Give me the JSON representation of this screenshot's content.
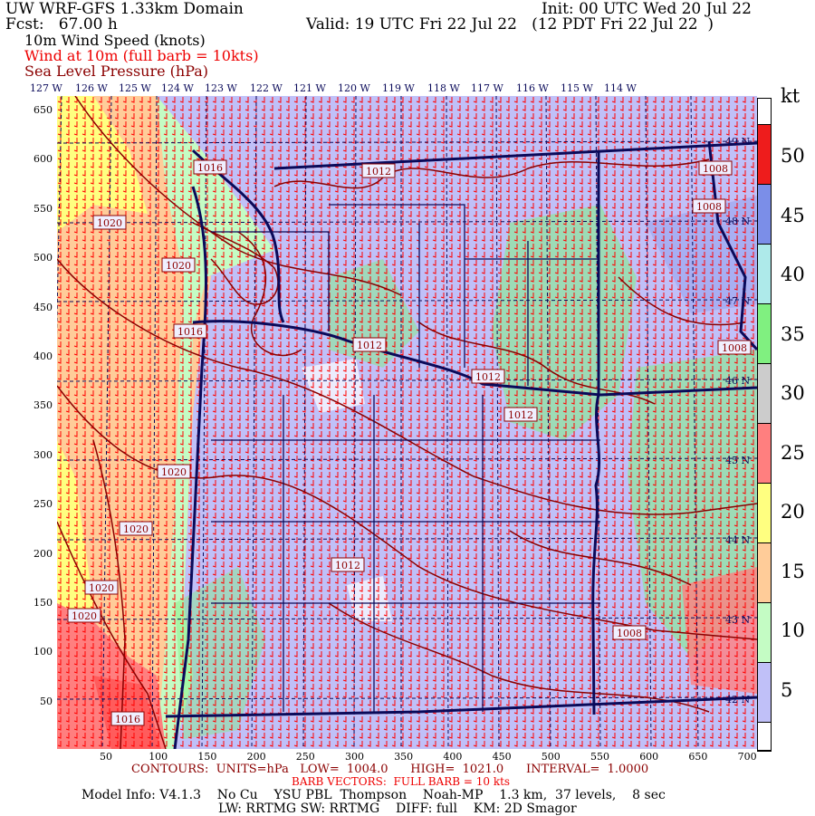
{
  "header": {
    "title": "UW WRF-GFS 1.33km Domain",
    "init": "Init: 00 UTC Wed 20 Jul 22",
    "fcst": "Fcst:   67.00 h",
    "valid": "Valid: 19 UTC Fri 22 Jul 22   (12 PDT Fri 22 Jul 22  )",
    "field1": "10m Wind Speed (knots)",
    "field2": "Wind at 10m (full barb = 10kts)",
    "field3": "Sea Level Pressure (hPa)"
  },
  "longitude_labels": [
    "127 W",
    "126 W",
    "125 W",
    "124 W",
    "123 W",
    "122 W",
    "121 W",
    "120 W",
    "119 W",
    "118 W",
    "117 W",
    "116 W",
    "115 W",
    "114 W"
  ],
  "latitude_labels": [
    "49 N",
    "48 N",
    "47 N",
    "46 N",
    "45 N",
    "44 N",
    "43 N",
    "42 N"
  ],
  "y_ticks": [
    "650",
    "600",
    "550",
    "500",
    "450",
    "400",
    "350",
    "300",
    "250",
    "200",
    "150",
    "100",
    "50"
  ],
  "x_ticks": [
    "50",
    "100",
    "150",
    "200",
    "250",
    "300",
    "350",
    "400",
    "450",
    "500",
    "550",
    "600",
    "650",
    "700"
  ],
  "colorbar": {
    "unit": "kt",
    "labels": [
      "50",
      "45",
      "40",
      "35",
      "30",
      "25",
      "20",
      "15",
      "10",
      "5"
    ],
    "colors": [
      "#ffffff",
      "#ee1c1c",
      "#7b8ee8",
      "#aeeaea",
      "#80f080",
      "#cccccc",
      "#ff7f7f",
      "#ffff80",
      "#ffcc99",
      "#c4fcc4",
      "#c0c0f8",
      "#ffffff"
    ]
  },
  "contour_labels": [
    "1016",
    "1012",
    "1008",
    "1008",
    "1020",
    "1020",
    "1016",
    "1012",
    "1012",
    "1008",
    "1012",
    "1020",
    "1020",
    "1012",
    "1020",
    "1020",
    "1008",
    "1016"
  ],
  "footer": {
    "contours": "CONTOURS:  UNITS=hPa   LOW=  1004.0      HIGH=  1021.0      INTERVAL=  1.0000",
    "barbs": "BARB VECTORS:  FULL BARB = 10 kts",
    "model_info": "Model Info: V4.1.3    No Cu    YSU PBL  Thompson    Noah-MP    1.3 km,  37 levels,    8 sec",
    "physics": "LW: RRTMG SW: RRTMG    DIFF: full    KM: 2D Smagor"
  },
  "colors": {
    "land_low": "#c0c0f8",
    "ocean": "#ffcc99",
    "contour": "#8b0000",
    "barb": "#ff0000",
    "border": "#0a0a5a"
  }
}
